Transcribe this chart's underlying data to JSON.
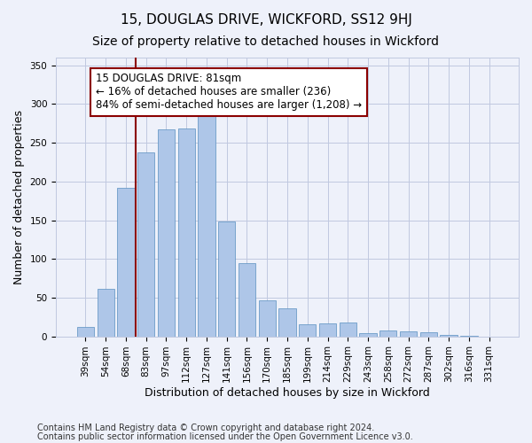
{
  "title": "15, DOUGLAS DRIVE, WICKFORD, SS12 9HJ",
  "subtitle": "Size of property relative to detached houses in Wickford",
  "xlabel": "Distribution of detached houses by size in Wickford",
  "ylabel": "Number of detached properties",
  "categories": [
    "39sqm",
    "54sqm",
    "68sqm",
    "83sqm",
    "97sqm",
    "112sqm",
    "127sqm",
    "141sqm",
    "156sqm",
    "170sqm",
    "185sqm",
    "199sqm",
    "214sqm",
    "229sqm",
    "243sqm",
    "258sqm",
    "272sqm",
    "287sqm",
    "302sqm",
    "316sqm",
    "331sqm"
  ],
  "values": [
    12,
    61,
    192,
    238,
    267,
    268,
    285,
    148,
    95,
    47,
    36,
    16,
    17,
    18,
    4,
    7,
    6,
    5,
    2,
    1,
    0
  ],
  "bar_color": "#aec6e8",
  "bar_edge_color": "#5a8fc0",
  "vline_x": 2.5,
  "vline_color": "#8b0000",
  "annotation_text": "15 DOUGLAS DRIVE: 81sqm\n← 16% of detached houses are smaller (236)\n84% of semi-detached houses are larger (1,208) →",
  "annotation_box_color": "#ffffff",
  "annotation_box_edge": "#8b0000",
  "ylim": [
    0,
    360
  ],
  "yticks": [
    0,
    50,
    100,
    150,
    200,
    250,
    300,
    350
  ],
  "background_color": "#eef1fa",
  "plot_bg_color": "#eef1fa",
  "footer1": "Contains HM Land Registry data © Crown copyright and database right 2024.",
  "footer2": "Contains public sector information licensed under the Open Government Licence v3.0.",
  "title_fontsize": 11,
  "subtitle_fontsize": 10,
  "axis_label_fontsize": 9,
  "tick_fontsize": 7.5,
  "annotation_fontsize": 8.5,
  "footer_fontsize": 7
}
